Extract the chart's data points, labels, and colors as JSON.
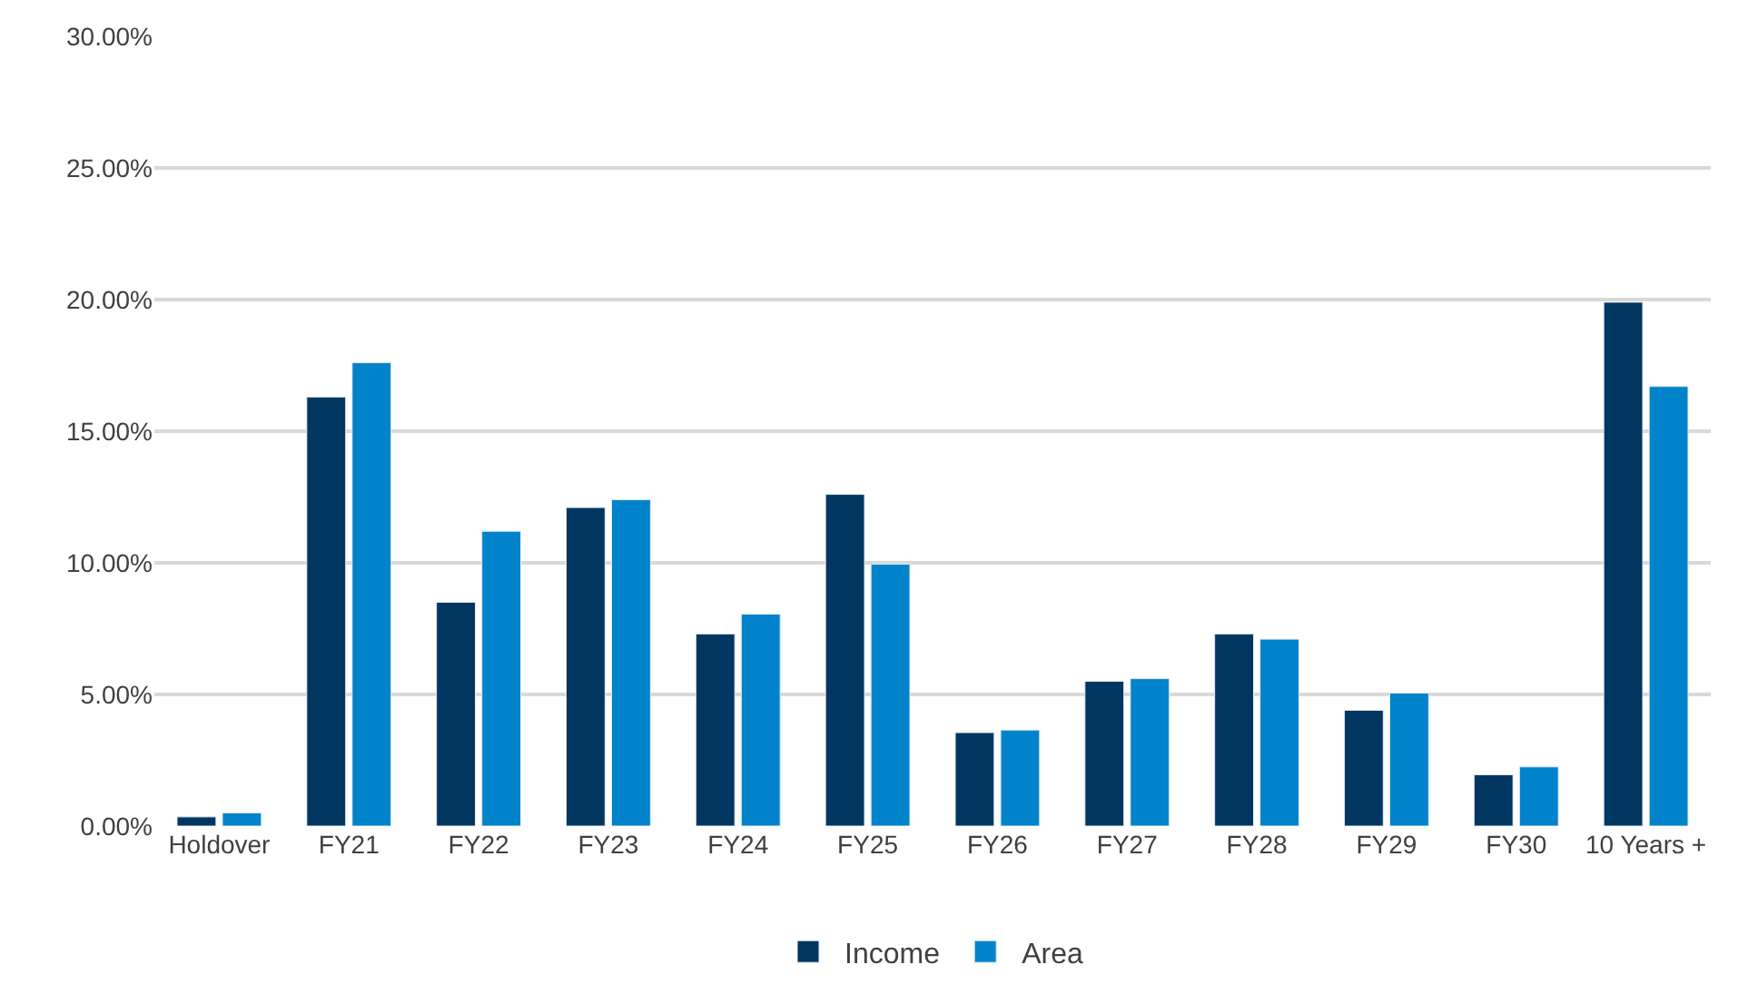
{
  "chart_data": {
    "type": "bar",
    "categories": [
      "Holdover",
      "FY21",
      "FY22",
      "FY23",
      "FY24",
      "FY25",
      "FY26",
      "FY27",
      "FY28",
      "FY29",
      "FY30",
      "10 Years +"
    ],
    "series": [
      {
        "name": "Income",
        "color": "#003660",
        "values": [
          0.35,
          16.3,
          8.5,
          12.1,
          7.3,
          12.6,
          3.55,
          5.5,
          7.3,
          4.4,
          1.95,
          19.9
        ]
      },
      {
        "name": "Area",
        "color": "#0083ca",
        "values": [
          0.5,
          17.6,
          11.2,
          12.4,
          8.05,
          9.95,
          3.65,
          5.6,
          7.1,
          5.05,
          2.25,
          16.7
        ]
      }
    ],
    "ylim": [
      0,
      30
    ],
    "yticks": [
      {
        "value": 0,
        "label": "0.00%"
      },
      {
        "value": 5,
        "label": "5.00%"
      },
      {
        "value": 10,
        "label": "10.00%"
      },
      {
        "value": 15,
        "label": "15.00%"
      },
      {
        "value": 20,
        "label": "20.00%"
      },
      {
        "value": 25,
        "label": "25.00%"
      },
      {
        "value": 30,
        "label": "30.00%"
      }
    ],
    "grid": "y",
    "legend": "bottom"
  }
}
